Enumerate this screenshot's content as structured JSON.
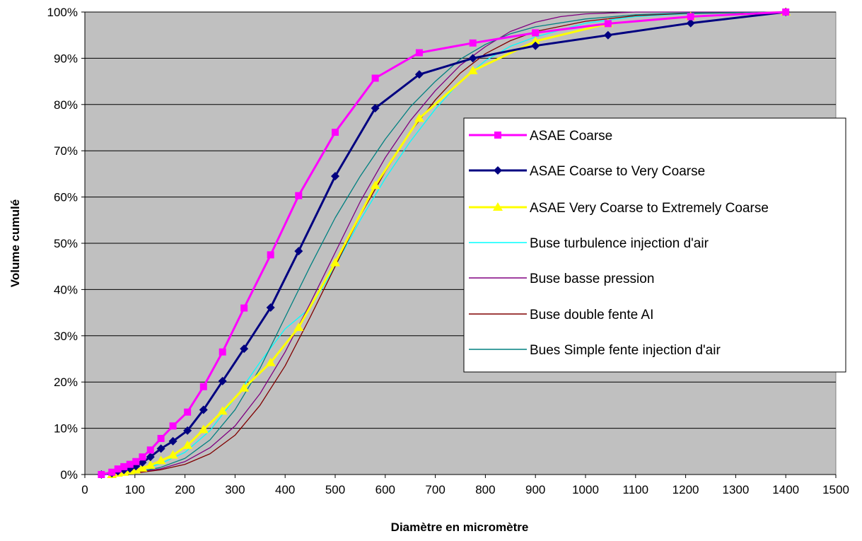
{
  "chart_data": {
    "type": "line",
    "title": "",
    "xlabel": "Diamètre en micromètre",
    "ylabel": "Volume cumulé",
    "xlim": [
      0,
      1500
    ],
    "ylim": [
      0,
      100
    ],
    "x_ticks": [
      "0",
      "100",
      "200",
      "300",
      "400",
      "500",
      "600",
      "700",
      "800",
      "900",
      "1000",
      "1100",
      "1200",
      "1300",
      "1400",
      "1500"
    ],
    "y_ticks": [
      "0%",
      "10%",
      "20%",
      "30%",
      "40%",
      "50%",
      "60%",
      "70%",
      "80%",
      "90%",
      "100%"
    ],
    "grid": "horizontal",
    "plot_background": "#c0c0c0",
    "legend_position": "right",
    "series": [
      {
        "name": "ASAE Coarse",
        "color": "#ff00ff",
        "marker": "square",
        "stroke_width": 3,
        "x": [
          33,
          54,
          66,
          78,
          90,
          102,
          115,
          131,
          152,
          176,
          205,
          237,
          275,
          318,
          371,
          427,
          500,
          580,
          668,
          775,
          900,
          1045,
          1210,
          1400
        ],
        "y": [
          0,
          0.5,
          1.2,
          1.7,
          2.2,
          2.8,
          3.8,
          5.3,
          7.8,
          10.5,
          13.5,
          19,
          26.5,
          36,
          47.5,
          60.3,
          74,
          85.7,
          91.2,
          93.3,
          95.5,
          97.5,
          99,
          100
        ]
      },
      {
        "name": "ASAE Coarse to Very Coarse",
        "color": "#000080",
        "marker": "diamond",
        "stroke_width": 3,
        "x": [
          33,
          54,
          66,
          78,
          90,
          102,
          115,
          131,
          152,
          176,
          205,
          237,
          275,
          318,
          371,
          427,
          500,
          580,
          668,
          775,
          900,
          1045,
          1210,
          1400
        ],
        "y": [
          0,
          0.3,
          0.7,
          1,
          1.3,
          1.8,
          2.6,
          3.8,
          5.6,
          7.2,
          9.5,
          14,
          20.2,
          27.2,
          36.1,
          48.3,
          64.5,
          79.2,
          86.5,
          90,
          92.7,
          95,
          97.6,
          100
        ]
      },
      {
        "name": "ASAE Very Coarse to Extremely Coarse",
        "color": "#ffff00",
        "marker": "triangle",
        "stroke_width": 3,
        "x": [
          54,
          66,
          78,
          90,
          102,
          115,
          131,
          152,
          176,
          205,
          237,
          275,
          318,
          371,
          427,
          500,
          580,
          668,
          775,
          900,
          1045,
          1210,
          1400
        ],
        "y": [
          0,
          0.3,
          0.5,
          0.8,
          1,
          1.4,
          2,
          3,
          4.2,
          6.3,
          9.7,
          13.7,
          18.7,
          24.2,
          31.8,
          45.8,
          62.5,
          77,
          87.3,
          93.7,
          97.5,
          99,
          100
        ]
      },
      {
        "name": "Buse turbulence injection d'air",
        "color": "#00ffff",
        "marker": "none",
        "stroke_width": 1.3,
        "x": [
          50,
          100,
          150,
          200,
          250,
          300,
          350,
          400,
          450,
          500,
          550,
          600,
          650,
          700,
          750,
          800,
          850,
          900,
          1000,
          1100,
          1200,
          1400
        ],
        "y": [
          0,
          0.8,
          2.3,
          4.8,
          9.5,
          16.5,
          24.3,
          31.5,
          36,
          45,
          55,
          64,
          72,
          79,
          85,
          89.5,
          92.6,
          94.6,
          97.6,
          99,
          99.6,
          100
        ]
      },
      {
        "name": "Buse basse pression",
        "color": "#800080",
        "marker": "none",
        "stroke_width": 1.3,
        "x": [
          50,
          100,
          150,
          200,
          250,
          300,
          350,
          400,
          450,
          500,
          550,
          600,
          650,
          700,
          750,
          800,
          850,
          900,
          950,
          1000,
          1100,
          1200,
          1400
        ],
        "y": [
          0,
          0.4,
          1.2,
          2.8,
          5.8,
          10.5,
          17.5,
          26.5,
          37,
          48,
          59,
          68.5,
          76.5,
          83,
          88.5,
          92.5,
          95.8,
          97.8,
          99,
          99.6,
          100,
          100,
          100
        ]
      },
      {
        "name": "Buse double fente AI",
        "color": "#800000",
        "marker": "none",
        "stroke_width": 1.3,
        "x": [
          50,
          100,
          150,
          200,
          250,
          300,
          350,
          400,
          450,
          500,
          550,
          600,
          650,
          700,
          750,
          800,
          850,
          900,
          1000,
          1100,
          1200,
          1400
        ],
        "y": [
          0,
          0.3,
          1,
          2.2,
          4.5,
          8.5,
          15,
          23.5,
          34,
          45,
          56,
          65.5,
          74,
          81,
          86.8,
          91,
          93.8,
          95.8,
          98,
          99.2,
          99.7,
          100
        ]
      },
      {
        "name": "Bues Simple fente injection d'air",
        "color": "#008080",
        "marker": "none",
        "stroke_width": 1.3,
        "x": [
          50,
          100,
          150,
          200,
          250,
          300,
          350,
          400,
          450,
          500,
          550,
          600,
          650,
          700,
          750,
          800,
          850,
          900,
          1000,
          1100,
          1200,
          1400
        ],
        "y": [
          0,
          0.5,
          1.5,
          3.5,
          7.5,
          14,
          23,
          34,
          45,
          55.5,
          64.5,
          72.5,
          79.5,
          85,
          89.8,
          93,
          95.3,
          96.8,
          98.5,
          99.4,
          99.8,
          100
        ]
      }
    ]
  }
}
